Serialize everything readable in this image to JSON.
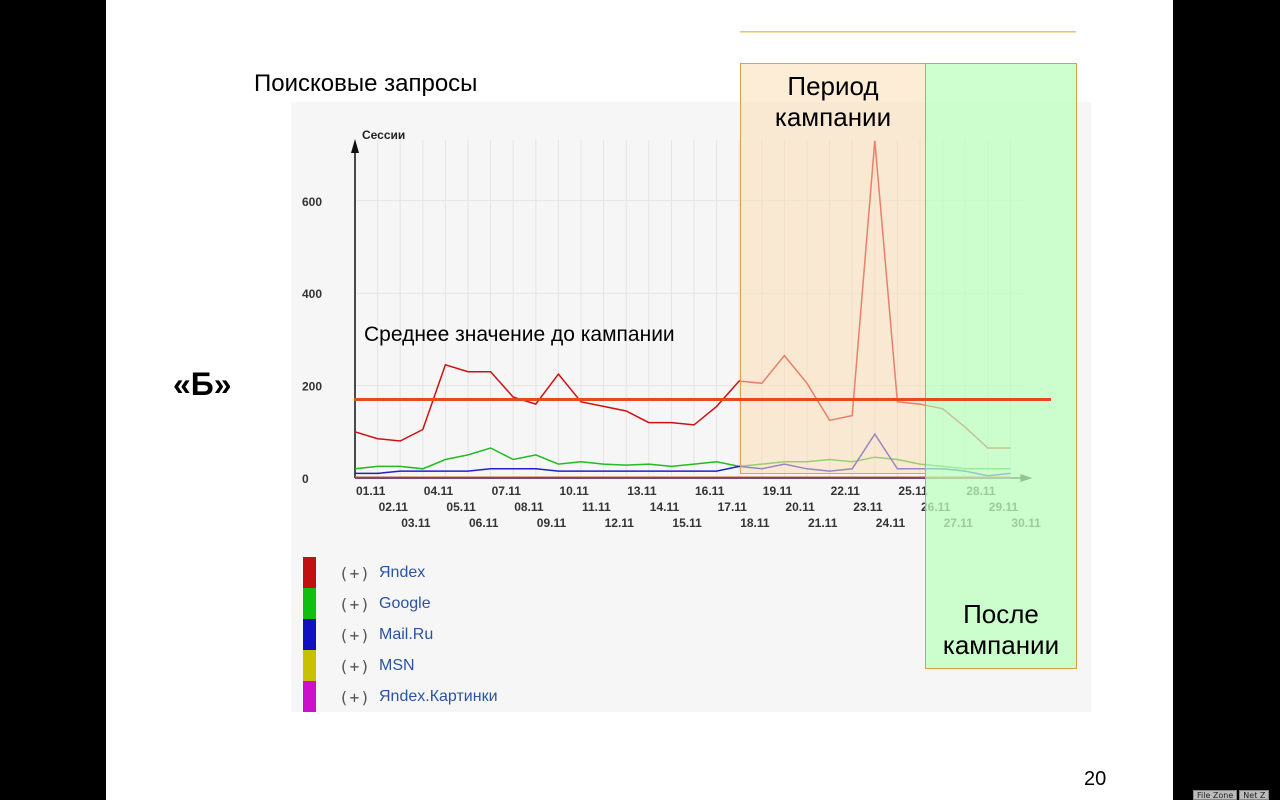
{
  "slide": {
    "title": "Поисковые запросы",
    "variant_label": "«Б»",
    "page_number": "20",
    "campaign_period_label": "Период кампании",
    "after_campaign_label": "После кампании",
    "average_line_label": "Среднее значение до кампании"
  },
  "taskbar": [
    "File Zone",
    "Net Z"
  ],
  "colors": {
    "average_line": "#e8481e",
    "campaign_band": "#fcdcb4",
    "after_band": "#beffbe",
    "grid": "#e4e4e4"
  },
  "chart_data": {
    "type": "line",
    "ylabel": "Сессии",
    "ylim": [
      0,
      740
    ],
    "yticks": [
      0,
      200,
      400,
      600
    ],
    "grid": true,
    "x": [
      "01.11",
      "02.11",
      "03.11",
      "04.11",
      "05.11",
      "06.11",
      "07.11",
      "08.11",
      "09.11",
      "10.11",
      "11.11",
      "12.11",
      "13.11",
      "14.11",
      "15.11",
      "16.11",
      "17.11",
      "18.11",
      "19.11",
      "20.11",
      "21.11",
      "22.11",
      "23.11",
      "24.11",
      "25.11",
      "26.11",
      "27.11",
      "28.11",
      "29.11",
      "30.11"
    ],
    "campaign_period": [
      "18.11",
      "25.11"
    ],
    "after_campaign_period": [
      "26.11",
      "30.11"
    ],
    "average_before_campaign": 170,
    "series": [
      {
        "name": "Яndex",
        "color": "#d01010",
        "values": [
          100,
          85,
          80,
          105,
          245,
          230,
          230,
          175,
          160,
          225,
          165,
          155,
          145,
          120,
          120,
          115,
          155,
          210,
          205,
          265,
          205,
          125,
          135,
          730,
          165,
          160,
          150,
          110,
          65,
          65
        ]
      },
      {
        "name": "Google",
        "color": "#22bb22",
        "values": [
          20,
          25,
          25,
          20,
          40,
          50,
          65,
          40,
          50,
          30,
          35,
          30,
          28,
          30,
          25,
          30,
          35,
          25,
          30,
          35,
          35,
          40,
          35,
          45,
          40,
          30,
          25,
          20,
          20,
          20
        ]
      },
      {
        "name": "Mail.Ru",
        "color": "#2020cc",
        "values": [
          10,
          10,
          15,
          15,
          15,
          15,
          20,
          20,
          20,
          15,
          15,
          15,
          15,
          15,
          15,
          15,
          15,
          25,
          20,
          30,
          20,
          15,
          20,
          95,
          20,
          20,
          20,
          15,
          5,
          10
        ]
      },
      {
        "name": "MSN",
        "color": "#c8c000",
        "values": [
          2,
          2,
          2,
          2,
          2,
          2,
          2,
          2,
          2,
          2,
          2,
          2,
          2,
          2,
          2,
          2,
          2,
          2,
          2,
          2,
          2,
          2,
          2,
          2,
          2,
          2,
          2,
          2,
          2,
          2
        ]
      },
      {
        "name": "Яndex.Картинки",
        "color": "#cc10cc",
        "values": [
          1,
          1,
          1,
          1,
          1,
          1,
          1,
          1,
          1,
          1,
          1,
          1,
          1,
          1,
          1,
          1,
          1,
          1,
          1,
          1,
          1,
          1,
          1,
          1,
          1,
          1,
          1,
          1,
          1,
          1
        ]
      }
    ],
    "legend": [
      {
        "prefix": "(+)",
        "label": "Яndex",
        "color": "#c01010"
      },
      {
        "prefix": "(+)",
        "label": "Google",
        "color": "#10c010"
      },
      {
        "prefix": "(+)",
        "label": "Mail.Ru",
        "color": "#1010c0"
      },
      {
        "prefix": "(+)",
        "label": "MSN",
        "color": "#c8c000"
      },
      {
        "prefix": "(+)",
        "label": "Яndex.Картинки",
        "color": "#cc10cc"
      }
    ]
  }
}
